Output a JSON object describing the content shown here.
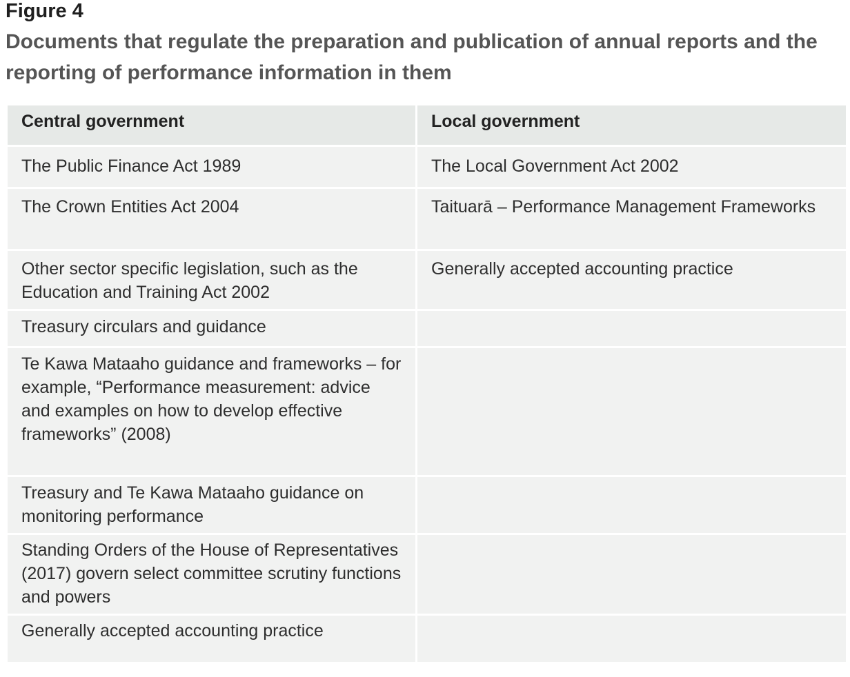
{
  "figure": {
    "label": "Figure 4",
    "title": "Documents that regulate the preparation and publication of annual reports and the reporting of performance information in them"
  },
  "table": {
    "headers": [
      "Central government",
      "Local government"
    ],
    "rows": [
      [
        "The Public Finance Act 1989",
        "The Local Government Act 2002"
      ],
      [
        "The Crown Entities Act 2004",
        "Taituarā – Performance Management Frameworks"
      ],
      [
        "Other sector specific legislation, such as the Education and Training Act 2002",
        "Generally accepted accounting practice"
      ],
      [
        "Treasury circulars and guidance",
        ""
      ],
      [
        "Te Kawa Mataaho guidance and frameworks – for example, “Performance measurement: advice and examples on how to develop effective frameworks” (2008)",
        ""
      ],
      [
        "Treasury and Te Kawa Mataaho guidance on monitoring performance",
        ""
      ],
      [
        "Standing Orders of the House of Representatives (2017) govern select committee scrutiny functions and powers",
        ""
      ],
      [
        "Generally accepted accounting practice",
        ""
      ]
    ]
  },
  "colors": {
    "header_bg": "#e6e9e7",
    "cell_bg": "#f1f2f1",
    "title_color": "#555555"
  }
}
